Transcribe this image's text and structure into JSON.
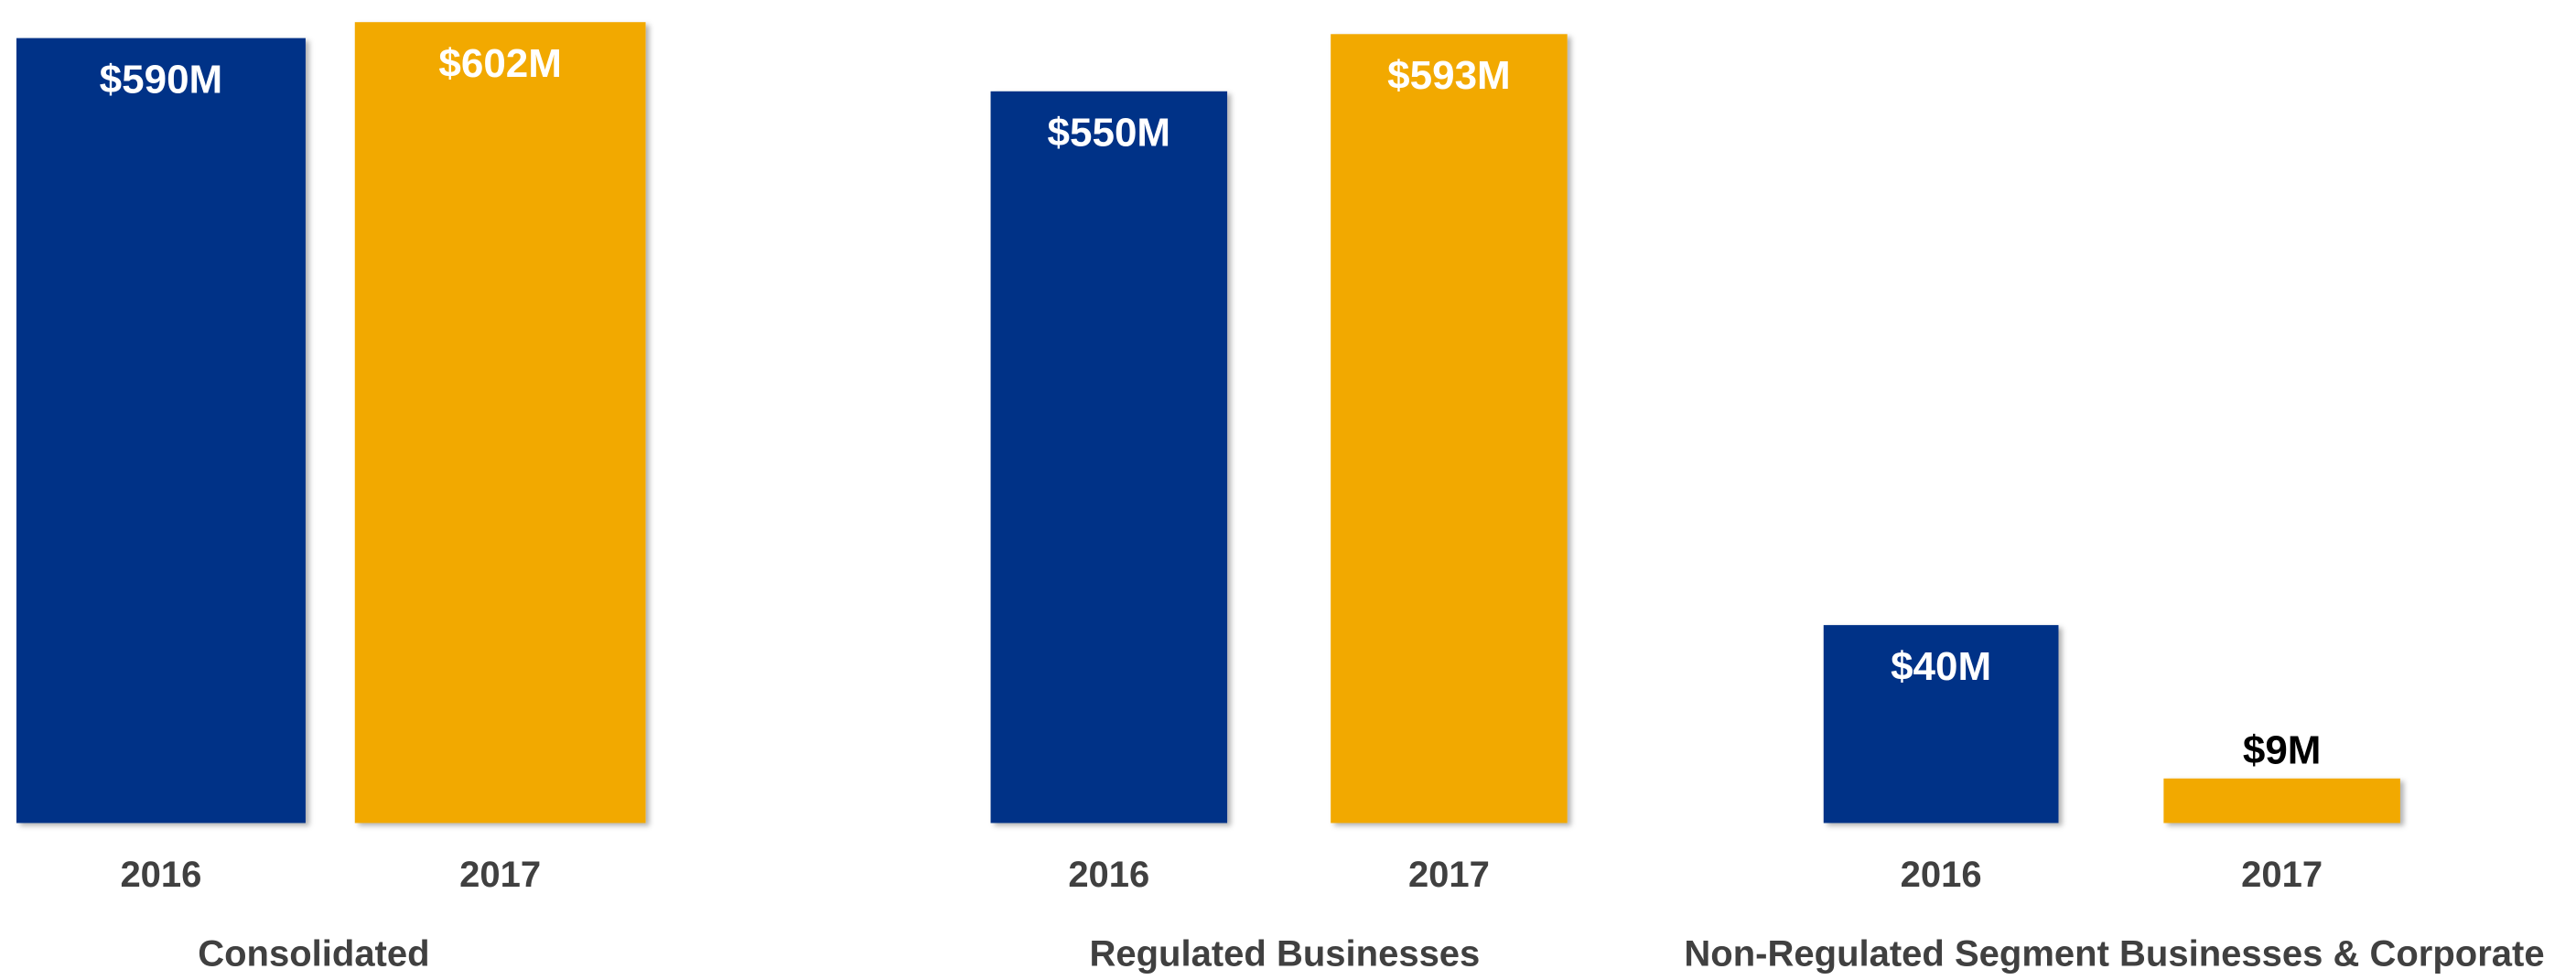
{
  "chart_data": [
    {
      "type": "bar",
      "title": "Consolidated",
      "categories": [
        "2016",
        "2017"
      ],
      "values": [
        590,
        602
      ],
      "value_labels": [
        "$590M",
        "$602M"
      ],
      "colors": [
        "#003087",
        "#f2a900"
      ],
      "ylim": [
        0,
        610
      ]
    },
    {
      "type": "bar",
      "title": "Regulated Businesses",
      "categories": [
        "2016",
        "2017"
      ],
      "values": [
        550,
        593
      ],
      "value_labels": [
        "$550M",
        "$593M"
      ],
      "colors": [
        "#003087",
        "#f2a900"
      ],
      "ylim": [
        0,
        610
      ]
    },
    {
      "type": "bar",
      "title": "Non-Regulated Segment Businesses & Corporate",
      "categories": [
        "2016",
        "2017"
      ],
      "values": [
        40,
        9
      ],
      "value_labels": [
        "$40M",
        "$9M"
      ],
      "colors": [
        "#003087",
        "#f2a900"
      ],
      "ylim": [
        0,
        164
      ]
    }
  ]
}
